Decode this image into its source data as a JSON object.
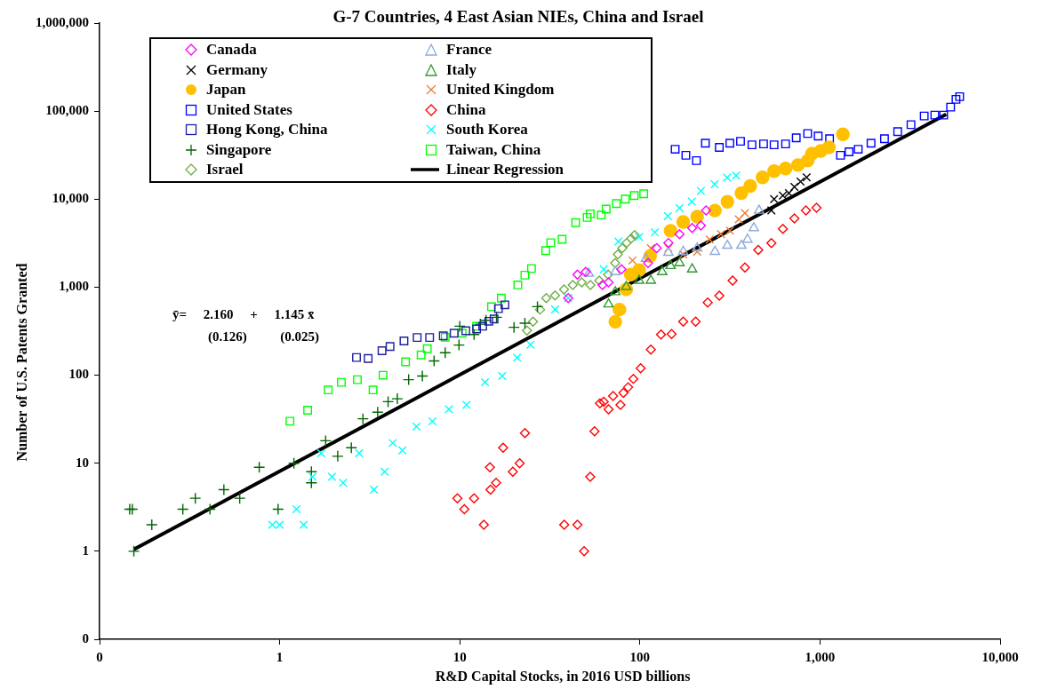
{
  "chart_data": {
    "type": "scatter",
    "title": "G-7 Countries, 4 East Asian NIEs, China and Israel",
    "xlabel": "R&D Capital Stocks, in 2016 USD billions",
    "ylabel": "Number of U.S. Patents Granted",
    "log": "xy",
    "grid": false,
    "legend": "top left",
    "xlim": [
      0.1,
      10000
    ],
    "xticks": [
      {
        "value": 0.1,
        "label": "0"
      },
      1,
      10,
      100,
      {
        "value": 1000,
        "label": "1,000"
      },
      {
        "value": 10000,
        "label": "10,000"
      }
    ],
    "ylim": [
      0.1,
      1000000
    ],
    "yticks": [
      {
        "value": 0.1,
        "label": "0"
      },
      1,
      10,
      100,
      {
        "value": 1000,
        "label": "1,000"
      },
      {
        "value": 10000,
        "label": "10,000"
      },
      {
        "value": 100000,
        "label": "100,000"
      },
      {
        "value": 1000000,
        "label": "1,000,000"
      }
    ],
    "annotations": [
      "ȳ=     2.160     +     1.145 x̄",
      "(0.126)          (0.025)"
    ],
    "series": [
      {
        "name": "Canada",
        "color": "#ff00ff",
        "marker": "diamond",
        "x": [
          40,
          45,
          50,
          62,
          67,
          79,
          111,
          124,
          144,
          166,
          195,
          218,
          233
        ],
        "values": [
          751,
          1390,
          1490,
          1060,
          1135,
          1600,
          1880,
          2770,
          3180,
          4000,
          4700,
          5020,
          7430
        ]
      },
      {
        "name": "France",
        "color": "#8eaadb",
        "marker": "triangle",
        "x": [
          52,
          73,
          108,
          144,
          174,
          208,
          261,
          306,
          366,
          396,
          429,
          459
        ],
        "values": [
          1430,
          1490,
          2110,
          2470,
          2530,
          2770,
          2530,
          2970,
          2970,
          3480,
          4700,
          7430
        ]
      },
      {
        "name": "Germany",
        "color": "#000000",
        "marker": "cross",
        "x": [
          537,
          556,
          622,
          672,
          721,
          780,
          843
        ],
        "values": [
          7430,
          10000,
          11000,
          11700,
          13800,
          15800,
          17700
        ]
      },
      {
        "name": "Italy",
        "color": "#339933",
        "marker": "triangle",
        "x": [
          67,
          73,
          84,
          99,
          115,
          133,
          148,
          166,
          195
        ],
        "values": [
          640,
          881,
          1010,
          1190,
          1190,
          1490,
          1750,
          1880,
          1600
        ]
      },
      {
        "name": "Japan",
        "color": "#ffc000",
        "marker": "circle",
        "x": [
          73,
          77,
          84,
          89,
          99,
          114,
          148,
          174,
          208,
          261,
          306,
          366,
          410,
          480,
          556,
          644,
          754,
          854,
          903,
          1010,
          1120,
          1340
        ],
        "values": [
          405,
          557,
          944,
          1390,
          1560,
          2260,
          4380,
          5510,
          6330,
          7430,
          9340,
          11700,
          14100,
          17700,
          20800,
          22300,
          24400,
          27400,
          32900,
          35300,
          38700,
          54500
        ]
      },
      {
        "name": "United Kingdom",
        "color": "#ed7d31",
        "marker": "cross",
        "x": [
          91,
          115,
          144,
          174,
          208,
          244,
          282,
          316,
          354,
          383
        ],
        "values": [
          2010,
          2770,
          2770,
          2360,
          2530,
          3480,
          4000,
          4380,
          5910,
          6930
        ]
      },
      {
        "name": "United States",
        "color": "#0000ff",
        "marker": "square",
        "x": [
          157,
          180,
          206,
          231,
          276,
          316,
          362,
          419,
          486,
          556,
          644,
          738,
          854,
          977,
          1130,
          1300,
          1450,
          1630,
          1920,
          2280,
          2700,
          3200,
          3790,
          4340,
          4860,
          5310,
          5690,
          5960
        ],
        "values": [
          36900,
          31500,
          27400,
          43300,
          38700,
          43300,
          45400,
          41400,
          42400,
          41400,
          42400,
          49700,
          55700,
          52000,
          48600,
          31500,
          34500,
          36900,
          43300,
          48600,
          58400,
          70200,
          88100,
          90200,
          90200,
          111000,
          136000,
          146000
        ]
      },
      {
        "name": "China",
        "color": "#ff0000",
        "marker": "diamond",
        "x": [
          9.7,
          10.6,
          12,
          13.6,
          14.7,
          14.8,
          15.9,
          17.4,
          19.7,
          21.5,
          23,
          38,
          45,
          49,
          53,
          56,
          60,
          63,
          67,
          71,
          78,
          81,
          86,
          92,
          101,
          115,
          131,
          150,
          174,
          204,
          238,
          276,
          327,
          383,
          454,
          537,
          622,
          721,
          835,
          956
        ],
        "values": [
          4,
          3,
          4,
          2,
          9,
          5,
          6,
          15,
          8,
          10,
          22,
          2,
          2,
          1,
          7,
          23,
          48,
          50,
          41,
          58,
          46,
          63,
          73,
          91,
          120,
          195,
          290,
          294,
          405,
          405,
          670,
          800,
          1190,
          1670,
          2650,
          3170,
          4590,
          6040,
          7430,
          8000
        ]
      },
      {
        "name": "Hong Kong, China",
        "color": "#1f1f9f",
        "marker": "square",
        "x": [
          2.67,
          3.1,
          3.7,
          4.1,
          4.9,
          5.8,
          6.8,
          8.1,
          9.3,
          10.8,
          12.4,
          13.4,
          14.5,
          15.5,
          16.4,
          17.8
        ],
        "values": [
          159,
          155,
          190,
          212,
          245,
          268,
          268,
          280,
          300,
          320,
          335,
          360,
          410,
          435,
          570,
          630
        ]
      },
      {
        "name": "South Korea",
        "color": "#00ffff",
        "marker": "cross",
        "x": [
          0.91,
          1.0,
          1.24,
          1.36,
          1.52,
          1.7,
          1.95,
          2.25,
          2.76,
          3.34,
          3.83,
          4.24,
          4.8,
          5.75,
          7.05,
          8.7,
          10.9,
          13.8,
          17.2,
          20.8,
          24.7,
          33.8,
          40,
          63,
          76,
          99,
          121,
          143,
          166,
          194,
          218,
          260,
          305,
          342
        ],
        "values": [
          2,
          2,
          3,
          2,
          7,
          13,
          7,
          6,
          13,
          5,
          8,
          17,
          14,
          26,
          30,
          41,
          46,
          83,
          98,
          158,
          222,
          560,
          750,
          1600,
          3300,
          3700,
          4200,
          6400,
          7900,
          9400,
          12400,
          14800,
          17600,
          18500
        ]
      },
      {
        "name": "Singapore",
        "color": "#006600",
        "marker": "plus",
        "x": [
          0.147,
          0.152,
          0.155,
          0.195,
          0.29,
          0.34,
          0.41,
          0.49,
          0.6,
          0.77,
          0.98,
          1.2,
          1.5,
          1.5,
          1.8,
          2.1,
          2.5,
          2.9,
          3.5,
          4.0,
          4.5,
          5.2,
          6.2,
          7.2,
          8.3,
          9.9,
          10,
          12,
          13,
          14,
          16,
          20,
          23,
          27
        ],
        "values": [
          3,
          3,
          1,
          2,
          3,
          4,
          3,
          5,
          4,
          9,
          3,
          10,
          8,
          6,
          18,
          12,
          15,
          32,
          38,
          50,
          54,
          89,
          98,
          145,
          180,
          220,
          360,
          290,
          380,
          420,
          455,
          350,
          390,
          600
        ]
      },
      {
        "name": "Taiwan, China",
        "color": "#00ff00",
        "marker": "square",
        "x": [
          1.14,
          1.43,
          1.86,
          2.2,
          2.7,
          3.3,
          3.75,
          5.0,
          6.1,
          6.6,
          8.3,
          10.3,
          12.4,
          15,
          17,
          21,
          23,
          25,
          30,
          32,
          37,
          44,
          51,
          53,
          61,
          65,
          74,
          83,
          93,
          105
        ],
        "values": [
          30,
          40,
          68,
          83,
          89,
          68,
          100,
          142,
          170,
          200,
          270,
          300,
          360,
          600,
          750,
          1060,
          1370,
          1630,
          2600,
          3200,
          3500,
          5400,
          6200,
          6800,
          6600,
          7700,
          8900,
          10000,
          11000,
          11500
        ]
      },
      {
        "name": "Israel",
        "color": "#70ad47",
        "marker": "diamond",
        "x": [
          23.6,
          25.5,
          27.9,
          30.2,
          33.8,
          37.9,
          42.4,
          47.5,
          53.1,
          59.5,
          66.6,
          72.9,
          75.4,
          79.8,
          84.4,
          89.4,
          93.5
        ],
        "values": [
          321,
          405,
          557,
          751,
          804,
          944,
          1060,
          1135,
          1060,
          1190,
          1390,
          1880,
          2360,
          2770,
          3180,
          3570,
          3910
        ]
      },
      {
        "name": "Linear Regression",
        "type": "line",
        "color": "#000000",
        "marker": "none",
        "line_style": "solid",
        "x": [
          0.155,
          5020
        ],
        "values": [
          1.05,
          92000
        ]
      }
    ]
  }
}
